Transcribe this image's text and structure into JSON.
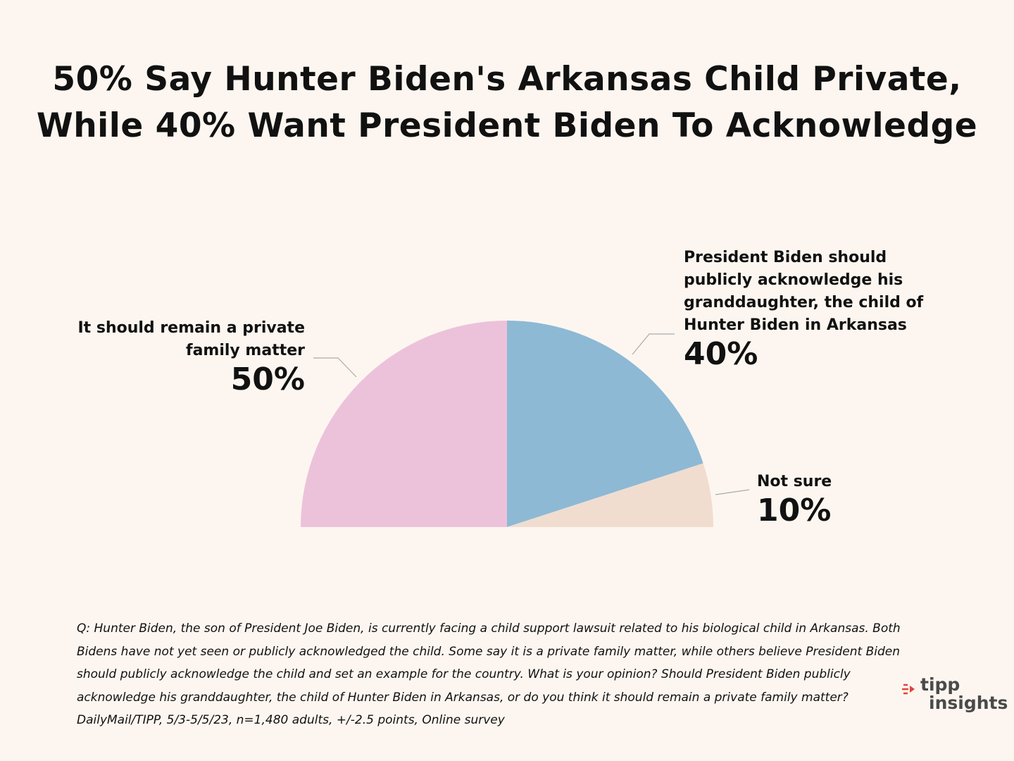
{
  "title": {
    "line1": "50% Say Hunter Biden's Arkansas Child Private,",
    "line2": "While 40% Want President Biden To Acknowledge"
  },
  "chart_data": {
    "type": "pie",
    "title": "50% Say Hunter Biden's Arkansas Child Private, While 40% Want President Biden To Acknowledge",
    "slices": [
      {
        "label": "It should remain a private family matter",
        "value": 50,
        "display": "50%",
        "color": "#ecc2db"
      },
      {
        "label": "President Biden should publicly acknowledge his granddaughter, the child of Hunter Biden in Arkansas",
        "value": 40,
        "display": "40%",
        "color": "#8db9d5"
      },
      {
        "label": "Not sure",
        "value": 10,
        "display": "10%",
        "color": "#f0ddd0"
      }
    ]
  },
  "labels": {
    "private_line1": "It should remain a private",
    "private_line2": "family matter",
    "private_pct": "50%",
    "ack_line1": "President Biden should",
    "ack_line2": "publicly acknowledge his",
    "ack_line3": "granddaughter, the child of",
    "ack_line4": "Hunter Biden in Arkansas",
    "ack_pct": "40%",
    "notsure_line1": "Not sure",
    "notsure_pct": "10%"
  },
  "footnote": {
    "line1": "Q: Hunter Biden, the son of President Joe Biden, is currently facing a  child support lawsuit related to his biological child in Arkansas. Both",
    "line2": "Bidens have not yet seen or publicly acknowledged the child. Some say it  is a private family matter, while others believe President Biden",
    "line3": "should  publicly acknowledge the child and set an example for the country. What  is your opinion? Should President Biden publicly",
    "line4": "acknowledge his  granddaughter, the child of Hunter Biden in Arkansas, or do you think it  should remain a private family matter?",
    "line5": "DailyMail/TIPP, 5/3-5/5/23, n=1,480 adults, +/-2.5 points, Online survey"
  },
  "logo": {
    "word1": "tipp",
    "word2": "insights",
    "accent_color": "#e0443a"
  },
  "colors": {
    "background": "#fdf6f0",
    "leader": "#aaaaaa"
  }
}
